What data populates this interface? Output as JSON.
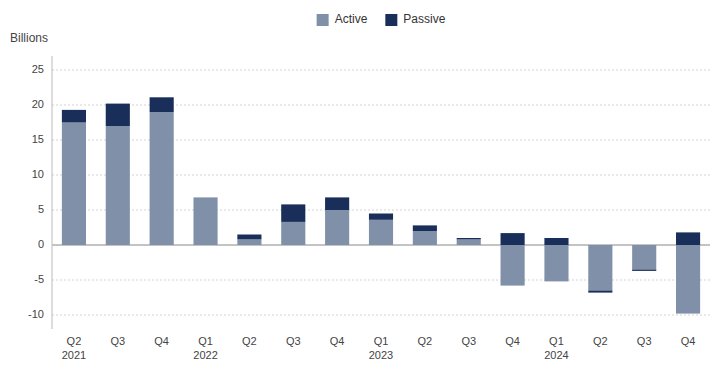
{
  "chart_data": {
    "type": "bar",
    "stacked": true,
    "ylabel": "Billions",
    "categories": [
      "Q2\n2021",
      "Q3",
      "Q4",
      "Q1\n2022",
      "Q2",
      "Q3",
      "Q4",
      "Q1\n2023",
      "Q2",
      "Q3",
      "Q4",
      "Q1\n2024",
      "Q2",
      "Q3",
      "Q4"
    ],
    "series": [
      {
        "name": "Active",
        "color": "#8090a8",
        "values": [
          17.5,
          17.0,
          19.0,
          6.8,
          0.8,
          3.3,
          5.0,
          3.6,
          2.0,
          0.8,
          -5.8,
          -5.2,
          -6.5,
          -3.5,
          -9.8
        ]
      },
      {
        "name": "Passive",
        "color": "#1a2e5a",
        "values": [
          1.8,
          3.2,
          2.1,
          0.0,
          0.7,
          2.5,
          1.8,
          0.9,
          0.8,
          0.2,
          1.7,
          1.0,
          -0.3,
          -0.2,
          1.8
        ]
      }
    ],
    "ylim": [
      -12,
      27
    ],
    "yticks": [
      -10,
      -5,
      0,
      5,
      10,
      15,
      20,
      25
    ],
    "grid": true,
    "legend": "top"
  }
}
